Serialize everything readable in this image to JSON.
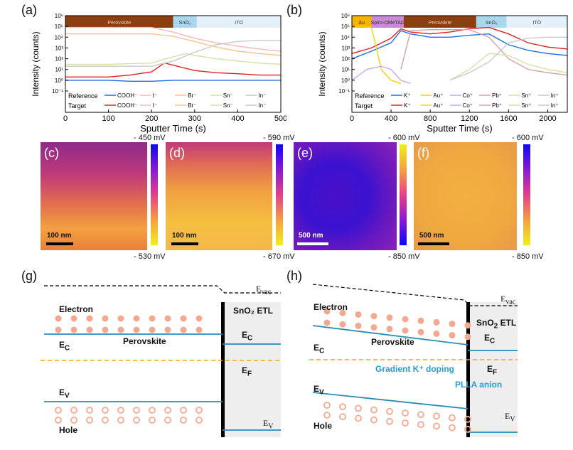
{
  "panels": {
    "a": "(a)",
    "b": "(b)",
    "c": "(c)",
    "d": "(d)",
    "e": "(e)",
    "f": "(f)",
    "g": "(g)",
    "h": "(h)"
  },
  "chart_data": [
    {
      "type": "line",
      "panel": "(a)",
      "xlabel": "Sputter Time (s)",
      "ylabel": "Intensity (counts)",
      "xlim": [
        0,
        500
      ],
      "ylim": [
        0.1,
        1000000
      ],
      "yscale": "log",
      "xticks": [
        "0",
        "100",
        "200",
        "300",
        "400",
        "500"
      ],
      "yticks": [
        "10⁻¹",
        "10⁰",
        "10¹",
        "10²",
        "10³",
        "10⁴",
        "10⁵",
        "10⁶"
      ],
      "layers": [
        {
          "name": "Perovskite",
          "from": 0,
          "to": 250,
          "color": "#8b3f10"
        },
        {
          "name": "SnO₂",
          "from": 250,
          "to": 305,
          "color": "#a9d7ee"
        },
        {
          "name": "ITO",
          "from": 305,
          "to": 500,
          "color": "#e4f1fa"
        }
      ],
      "legend": {
        "rows": [
          "Reference",
          "Target"
        ],
        "entries": [
          "COOH⁻",
          "I⁻",
          "Br⁻",
          "Sn⁻",
          "In⁻"
        ]
      },
      "series": [
        {
          "name": "COOH⁻",
          "group": "Reference",
          "color": "#1f6fe0",
          "x": [
            0,
            50,
            100,
            150,
            200,
            250,
            300,
            350,
            400,
            450,
            500
          ],
          "y": [
            1,
            1,
            1,
            0.8,
            0.8,
            1,
            1,
            1,
            1,
            1,
            1
          ]
        },
        {
          "name": "COOH⁻",
          "group": "Target",
          "color": "#e02020",
          "x": [
            0,
            50,
            100,
            150,
            200,
            230,
            260,
            300,
            350,
            400,
            450,
            500
          ],
          "y": [
            2,
            2,
            2,
            3,
            6,
            40,
            20,
            8,
            5,
            4,
            3,
            3
          ]
        },
        {
          "name": "I⁻",
          "group": "Reference",
          "color": "#f2b8b8",
          "x": [
            0,
            100,
            200,
            250,
            300,
            350,
            400,
            450,
            500
          ],
          "y": [
            80000,
            80000,
            80000,
            30000,
            8000,
            3000,
            1500,
            800,
            500
          ]
        },
        {
          "name": "Br⁻",
          "group": "Reference",
          "color": "#f7c48e",
          "x": [
            0,
            100,
            200,
            250,
            300,
            350,
            400,
            450,
            500
          ],
          "y": [
            20000,
            20000,
            20000,
            12000,
            4000,
            1200,
            500,
            300,
            200
          ]
        },
        {
          "name": "Sn⁻",
          "group": "Reference",
          "color": "#d9dfa8",
          "x": [
            0,
            100,
            200,
            250,
            280,
            300,
            350,
            400,
            450,
            500
          ],
          "y": [
            30,
            30,
            40,
            150,
            300,
            200,
            100,
            60,
            40,
            30
          ]
        },
        {
          "name": "In⁻",
          "group": "Reference",
          "color": "#c9c9c9",
          "x": [
            0,
            100,
            200,
            250,
            300,
            350,
            400,
            450,
            500
          ],
          "y": [
            20,
            20,
            20,
            60,
            400,
            2000,
            4000,
            5000,
            5000
          ]
        }
      ]
    },
    {
      "type": "line",
      "panel": "(b)",
      "xlabel": "Sputter Time (s)",
      "ylabel": "Intensity (counts)",
      "xlim": [
        0,
        2200
      ],
      "ylim": [
        0.1,
        1000000
      ],
      "yscale": "log",
      "xticks": [
        "0",
        "400",
        "800",
        "1200",
        "1600",
        "2000"
      ],
      "yticks": [
        "10⁻¹",
        "10⁰",
        "10¹",
        "10²",
        "10³",
        "10⁴",
        "10⁵",
        "10⁶"
      ],
      "layers": [
        {
          "name": "Au",
          "from": 0,
          "to": 200,
          "color": "#f5b400"
        },
        {
          "name": "Spiro-OMeTAD",
          "from": 200,
          "to": 530,
          "color": "#c98ad6"
        },
        {
          "name": "Perovskite",
          "from": 530,
          "to": 1270,
          "color": "#8b3f10"
        },
        {
          "name": "SnO₂",
          "from": 1270,
          "to": 1580,
          "color": "#a9d7ee"
        },
        {
          "name": "ITO",
          "from": 1580,
          "to": 2200,
          "color": "#e4f1fa"
        }
      ],
      "legend": {
        "rows": [
          "Reference",
          "Target"
        ],
        "entries": [
          "K⁺",
          "Au⁺",
          "Co⁺",
          "Pb⁺",
          "Sn⁺",
          "In⁺"
        ]
      },
      "series": [
        {
          "name": "K⁺",
          "group": "Reference",
          "color": "#1f6fe0",
          "x": [
            0,
            200,
            400,
            500,
            600,
            800,
            1000,
            1200,
            1400,
            1600,
            1800,
            2000,
            2200
          ],
          "y": [
            100,
            500,
            3000,
            40000,
            20000,
            10000,
            10000,
            15000,
            20000,
            2000,
            600,
            300,
            200
          ]
        },
        {
          "name": "K⁺",
          "group": "Target",
          "color": "#e02020",
          "x": [
            0,
            200,
            400,
            500,
            600,
            800,
            1000,
            1200,
            1400,
            1600,
            1800,
            2000,
            2200
          ],
          "y": [
            300,
            1000,
            8000,
            60000,
            30000,
            20000,
            30000,
            60000,
            80000,
            20000,
            3000,
            1200,
            800
          ]
        },
        {
          "name": "Au⁺",
          "group": "Reference",
          "color": "#f5d400",
          "x": [
            0,
            100,
            200,
            250,
            300,
            400,
            500
          ],
          "y": [
            100000,
            100000,
            80000,
            1000,
            10,
            1,
            0.5
          ]
        },
        {
          "name": "Co⁺",
          "group": "Reference",
          "color": "#c9a8e8",
          "x": [
            0,
            150,
            300,
            400,
            500,
            600
          ],
          "y": [
            1,
            10,
            20,
            10,
            1,
            0.5
          ]
        },
        {
          "name": "Pb⁺",
          "group": "Reference",
          "color": "#d9a0a0",
          "x": [
            500,
            600,
            800,
            1000,
            1200,
            1400,
            1600,
            1800,
            2000,
            2200
          ],
          "y": [
            10,
            40000,
            50000,
            50000,
            50000,
            10000,
            100,
            10,
            5,
            3
          ]
        },
        {
          "name": "Sn⁺",
          "group": "Reference",
          "color": "#d9dfa8",
          "x": [
            1000,
            1200,
            1400,
            1600,
            1800,
            2000,
            2200
          ],
          "y": [
            1,
            10,
            300,
            200,
            30,
            10,
            5
          ]
        },
        {
          "name": "In⁺",
          "group": "Reference",
          "color": "#c9c9c9",
          "x": [
            1000,
            1200,
            1400,
            1600,
            1800,
            2000,
            2200
          ],
          "y": [
            1,
            5,
            50,
            3000,
            8000,
            10000,
            10000
          ]
        }
      ]
    }
  ],
  "maps": [
    {
      "panel": "(c)",
      "top": "- 450 mV",
      "bottom": "- 530 mV",
      "scalebar": "100 nm",
      "palette": "plasma"
    },
    {
      "panel": "(d)",
      "top": "- 590 mV",
      "bottom": "- 670 mV",
      "scalebar": "100 nm",
      "palette": "plasma"
    },
    {
      "panel": "(e)",
      "top": "- 600 mV",
      "bottom": "- 850 mV",
      "scalebar": "500 nm",
      "palette": "plasma"
    },
    {
      "panel": "(f)",
      "top": "- 600 mV",
      "bottom": "- 850 mV",
      "scalebar": "500 nm",
      "palette": "plasma"
    }
  ],
  "diagram_g": {
    "evac": "E",
    "evac_sub": "vac",
    "electron": "Electron",
    "ec": "E",
    "ec_sub": "C",
    "perovskite": "Perovskite",
    "etl": "SnO₂ ETL",
    "ef": "E",
    "ef_sub": "F",
    "ev": "E",
    "ev_sub": "V",
    "hole": "Hole"
  },
  "diagram_h": {
    "evac": "E",
    "evac_sub": "vac",
    "electron": "Electron",
    "ec": "E",
    "ec_sub": "C",
    "perovskite": "Perovskite",
    "etl": "SnO₂ ETL",
    "ef": "E",
    "ef_sub": "F",
    "ev": "E",
    "ev_sub": "V",
    "hole": "Hole",
    "doping": "Gradient K⁺ doping",
    "anion": "PLLA anion"
  },
  "colors": {
    "band": "#2a8ab8",
    "fermi": "#f5a800",
    "carrier": "#f5a890",
    "etl_bg": "#eeeeee",
    "accent_text": "#2a9bd0"
  }
}
